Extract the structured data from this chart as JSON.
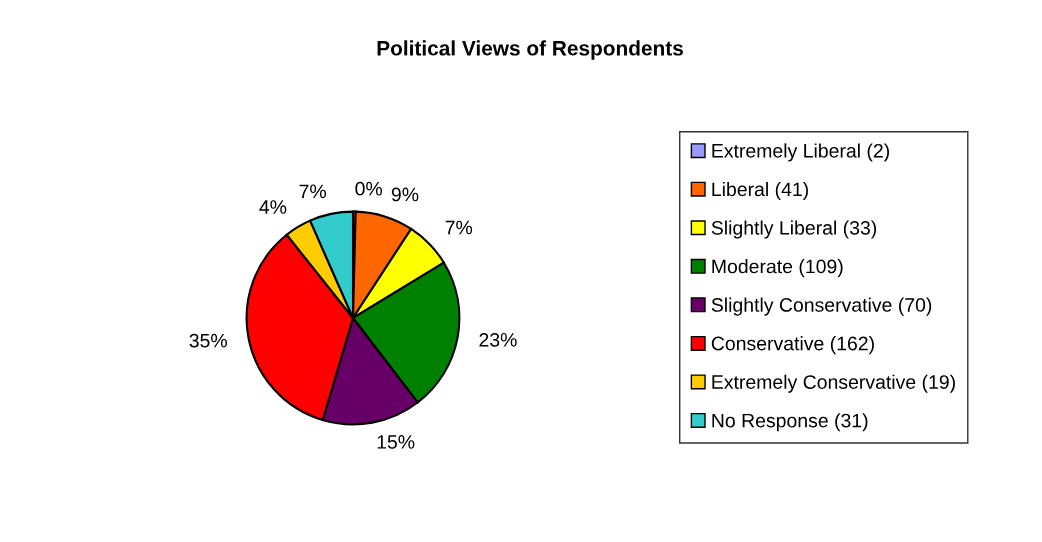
{
  "chart_data": {
    "type": "pie",
    "title": "Political Views of Respondents",
    "categories": [
      "Extremely Liberal (2)",
      "Liberal (41)",
      "Slightly Liberal (33)",
      "Moderate (109)",
      "Slightly Conservative (70)",
      "Conservative (162)",
      "Extremely Conservative (19)",
      "No Response (31)"
    ],
    "values": [
      0.4,
      8.8,
      7.1,
      23.3,
      15.0,
      34.7,
      4.1,
      6.6
    ],
    "value_labels": [
      "0%",
      "9%",
      "7%",
      "23%",
      "15%",
      "35%",
      "4%",
      "7%"
    ],
    "colors": [
      "#9999ff",
      "#ff6600",
      "#ffff00",
      "#008000",
      "#660066",
      "#ff0000",
      "#ffcc00",
      "#33cccc"
    ],
    "legend": "right"
  }
}
